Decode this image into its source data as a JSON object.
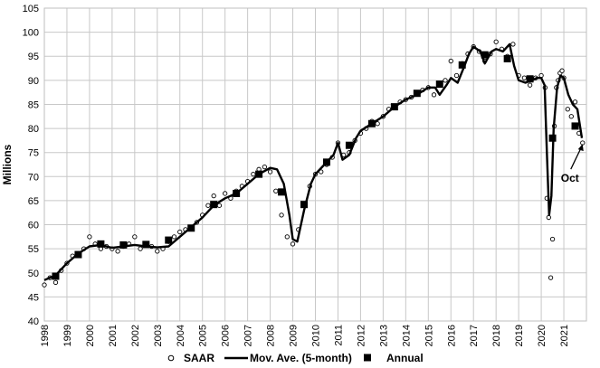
{
  "chart_data": {
    "type": "line",
    "title": "",
    "xlabel": "",
    "ylabel": "Millions",
    "xlim": [
      1998.0,
      2022.0
    ],
    "ylim": [
      40,
      105
    ],
    "y_ticks": [
      40,
      45,
      50,
      55,
      60,
      65,
      70,
      75,
      80,
      85,
      90,
      95,
      100,
      105
    ],
    "x_ticks": [
      "1998",
      "1999",
      "2000",
      "2001",
      "2002",
      "2003",
      "2004",
      "2005",
      "2006",
      "2007",
      "2008",
      "2009",
      "2010",
      "2011",
      "2012",
      "2013",
      "2014",
      "2015",
      "2016",
      "2017",
      "2018",
      "2019",
      "2020",
      "2021"
    ],
    "grid": true,
    "legend_position": "bottom",
    "series": [
      {
        "name": "SAAR",
        "marker": "open-circle",
        "color": "#000000",
        "x": [
          1998.0,
          1998.25,
          1998.5,
          1998.75,
          1999.0,
          1999.25,
          1999.5,
          1999.75,
          2000.0,
          2000.25,
          2000.5,
          2000.75,
          2001.0,
          2001.25,
          2001.5,
          2001.75,
          2002.0,
          2002.25,
          2002.5,
          2002.75,
          2003.0,
          2003.25,
          2003.5,
          2003.75,
          2004.0,
          2004.25,
          2004.5,
          2004.75,
          2005.0,
          2005.25,
          2005.5,
          2005.75,
          2006.0,
          2006.25,
          2006.5,
          2006.75,
          2007.0,
          2007.25,
          2007.5,
          2007.75,
          2008.0,
          2008.25,
          2008.5,
          2008.75,
          2009.0,
          2009.25,
          2009.5,
          2009.75,
          2010.0,
          2010.25,
          2010.5,
          2010.75,
          2011.0,
          2011.25,
          2011.5,
          2011.75,
          2012.0,
          2012.25,
          2012.5,
          2012.75,
          2013.0,
          2013.25,
          2013.5,
          2013.75,
          2014.0,
          2014.25,
          2014.5,
          2014.75,
          2015.0,
          2015.25,
          2015.5,
          2015.75,
          2016.0,
          2016.25,
          2016.5,
          2016.75,
          2017.0,
          2017.25,
          2017.5,
          2017.75,
          2018.0,
          2018.25,
          2018.5,
          2018.75,
          2019.0,
          2019.25,
          2019.5,
          2019.75,
          2020.0,
          2020.17,
          2020.25,
          2020.33,
          2020.42,
          2020.5,
          2020.58,
          2020.67,
          2020.75,
          2020.83,
          2020.92,
          2021.0,
          2021.17,
          2021.33,
          2021.5,
          2021.67,
          2021.83
        ],
        "values": [
          47.5,
          49.0,
          48.0,
          50.5,
          52.0,
          53.5,
          54.0,
          55.0,
          57.5,
          56.0,
          55.0,
          55.5,
          55.0,
          54.5,
          55.5,
          56.0,
          57.5,
          55.0,
          56.0,
          55.5,
          54.5,
          55.0,
          56.5,
          57.5,
          58.5,
          59.0,
          59.5,
          60.5,
          62.0,
          64.0,
          66.0,
          64.0,
          66.5,
          65.5,
          67.0,
          68.0,
          69.0,
          70.5,
          71.5,
          72.0,
          71.0,
          67.0,
          62.0,
          57.5,
          56.0,
          59.0,
          64.0,
          68.0,
          70.5,
          71.0,
          72.5,
          74.0,
          77.0,
          74.5,
          75.0,
          77.5,
          79.0,
          80.0,
          81.5,
          81.0,
          82.5,
          84.0,
          84.5,
          85.5,
          86.0,
          86.5,
          87.5,
          88.0,
          88.5,
          87.0,
          89.0,
          90.0,
          94.0,
          91.0,
          93.5,
          95.5,
          97.0,
          96.0,
          94.0,
          95.5,
          98.0,
          96.5,
          95.0,
          97.5,
          91.0,
          90.5,
          89.0,
          90.5,
          91.0,
          88.5,
          65.5,
          61.5,
          49.0,
          57.0,
          80.5,
          88.5,
          90.0,
          91.5,
          92.0,
          90.5,
          84.0,
          82.5,
          85.5,
          79.0,
          77.0
        ]
      },
      {
        "name": "Mov. Ave. (5-month)",
        "marker": "line",
        "color": "#000000",
        "x": [
          1998.0,
          1998.5,
          1999.0,
          1999.5,
          2000.0,
          2000.5,
          2001.0,
          2001.5,
          2002.0,
          2002.5,
          2003.0,
          2003.5,
          2004.0,
          2004.5,
          2005.0,
          2005.5,
          2006.0,
          2006.5,
          2007.0,
          2007.5,
          2008.0,
          2008.3,
          2008.6,
          2008.85,
          2009.0,
          2009.2,
          2009.5,
          2009.8,
          2010.0,
          2010.4,
          2010.8,
          2011.0,
          2011.2,
          2011.5,
          2011.8,
          2012.0,
          2012.5,
          2013.0,
          2013.5,
          2014.0,
          2014.5,
          2015.0,
          2015.3,
          2015.5,
          2015.8,
          2016.0,
          2016.3,
          2016.6,
          2016.8,
          2017.0,
          2017.3,
          2017.5,
          2017.8,
          2018.0,
          2018.3,
          2018.6,
          2018.8,
          2019.0,
          2019.3,
          2019.6,
          2019.8,
          2020.0,
          2020.15,
          2020.25,
          2020.35,
          2020.45,
          2020.55,
          2020.7,
          2020.85,
          2021.0,
          2021.2,
          2021.4,
          2021.6,
          2021.8
        ],
        "values": [
          48.5,
          49.5,
          52.0,
          54.0,
          55.5,
          55.8,
          55.2,
          55.5,
          55.8,
          55.5,
          55.3,
          55.5,
          57.5,
          59.5,
          61.5,
          64.0,
          65.5,
          66.5,
          68.5,
          70.5,
          71.8,
          71.5,
          68.5,
          62.0,
          57.0,
          56.5,
          63.0,
          68.5,
          70.5,
          72.5,
          74.5,
          77.0,
          73.5,
          74.5,
          78.0,
          79.5,
          81.0,
          82.5,
          84.5,
          86.0,
          87.0,
          88.5,
          88.5,
          87.0,
          89.0,
          90.5,
          89.5,
          93.0,
          95.5,
          97.0,
          96.0,
          93.5,
          96.0,
          96.5,
          96.0,
          97.5,
          93.0,
          90.0,
          89.5,
          90.0,
          90.5,
          90.5,
          89.0,
          75.0,
          62.0,
          66.0,
          80.0,
          88.5,
          91.0,
          90.5,
          87.0,
          85.0,
          84.0,
          78.0
        ]
      },
      {
        "name": "Annual",
        "marker": "filled-square",
        "color": "#000000",
        "x": [
          1998.5,
          1999.5,
          2000.5,
          2001.5,
          2002.5,
          2003.5,
          2004.5,
          2005.5,
          2006.5,
          2007.5,
          2008.5,
          2009.5,
          2010.5,
          2011.5,
          2012.5,
          2013.5,
          2014.5,
          2015.5,
          2016.5,
          2017.5,
          2018.5,
          2019.5,
          2020.5,
          2021.5
        ],
        "values": [
          49.3,
          53.8,
          56.0,
          55.8,
          55.9,
          56.8,
          59.3,
          64.2,
          66.5,
          70.5,
          66.8,
          64.2,
          73.0,
          76.5,
          81.0,
          84.5,
          87.3,
          89.2,
          93.2,
          95.3,
          94.5,
          90.3,
          78.0,
          80.5
        ]
      }
    ],
    "annotations": [
      {
        "text": "Oct",
        "points_to": {
          "x": 2021.83,
          "y": 76.8
        }
      }
    ]
  }
}
